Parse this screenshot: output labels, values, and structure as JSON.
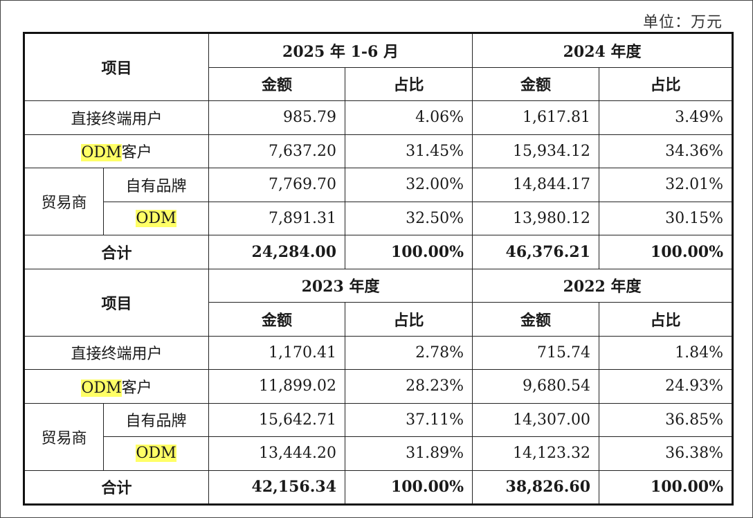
{
  "unit_label": "单位：万元",
  "headers": {
    "item": "项目",
    "amount": "金额",
    "ratio": "占比"
  },
  "row_labels": {
    "direct_users": "直接终端用户",
    "odm_customer_highlight": "ODM",
    "odm_customer_suffix": "客户",
    "traders": "贸易商",
    "own_brand": "自有品牌",
    "odm": "ODM",
    "total": "合计"
  },
  "sections": [
    {
      "periods": [
        "2025 年 1-6 月",
        "2024 年度"
      ],
      "direct_users": [
        [
          "985.79",
          "4.06%"
        ],
        [
          "1,617.81",
          "3.49%"
        ]
      ],
      "odm_customer": [
        [
          "7,637.20",
          "31.45%"
        ],
        [
          "15,934.12",
          "34.36%"
        ]
      ],
      "own_brand": [
        [
          "7,769.70",
          "32.00%"
        ],
        [
          "14,844.17",
          "32.01%"
        ]
      ],
      "odm": [
        [
          "7,891.31",
          "32.50%"
        ],
        [
          "13,980.12",
          "30.15%"
        ]
      ],
      "total": [
        [
          "24,284.00",
          "100.00%"
        ],
        [
          "46,376.21",
          "100.00%"
        ]
      ]
    },
    {
      "periods": [
        "2023 年度",
        "2022 年度"
      ],
      "direct_users": [
        [
          "1,170.41",
          "2.78%"
        ],
        [
          "715.74",
          "1.84%"
        ]
      ],
      "odm_customer": [
        [
          "11,899.02",
          "28.23%"
        ],
        [
          "9,680.54",
          "24.93%"
        ]
      ],
      "own_brand": [
        [
          "15,642.71",
          "37.11%"
        ],
        [
          "14,307.00",
          "36.85%"
        ]
      ],
      "odm": [
        [
          "13,444.20",
          "31.89%"
        ],
        [
          "14,123.32",
          "36.38%"
        ]
      ],
      "total": [
        [
          "42,156.34",
          "100.00%"
        ],
        [
          "38,826.60",
          "100.00%"
        ]
      ]
    }
  ]
}
